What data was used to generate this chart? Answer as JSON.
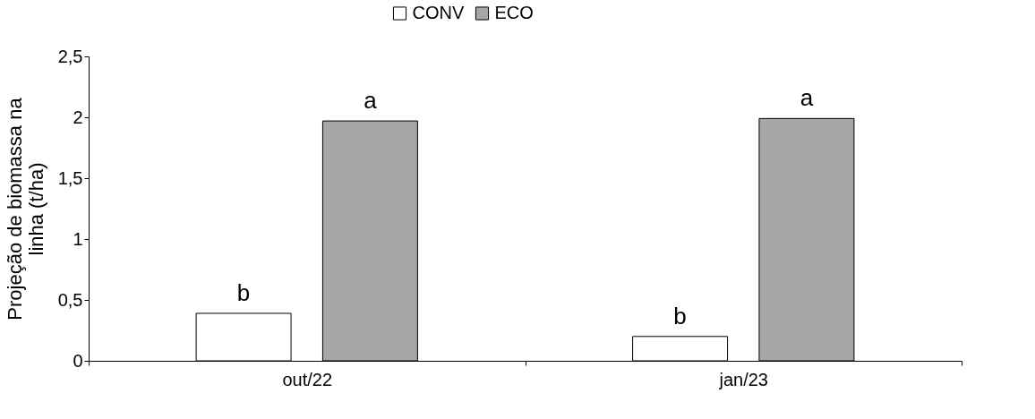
{
  "chart_data": {
    "type": "bar",
    "ylabel": "Projeção de biomassa na linha (t/ha)",
    "categories": [
      "out/22",
      "jan/23"
    ],
    "series": [
      {
        "name": "CONV",
        "color": "#ffffff",
        "values": [
          0.39,
          0.2
        ],
        "value_labels": [
          "b",
          "b"
        ]
      },
      {
        "name": "ECO",
        "color": "#a6a6a6",
        "values": [
          1.97,
          1.99
        ],
        "value_labels": [
          "a",
          "a"
        ]
      }
    ],
    "ylim": [
      0,
      2.5
    ],
    "yticks": [
      0,
      {
        "value": 0.5,
        "label": "0,5"
      },
      1,
      {
        "value": 1.5,
        "label": "1,5"
      },
      2,
      {
        "value": 2.5,
        "label": "2,5"
      }
    ],
    "grid": false,
    "legend": "top"
  }
}
